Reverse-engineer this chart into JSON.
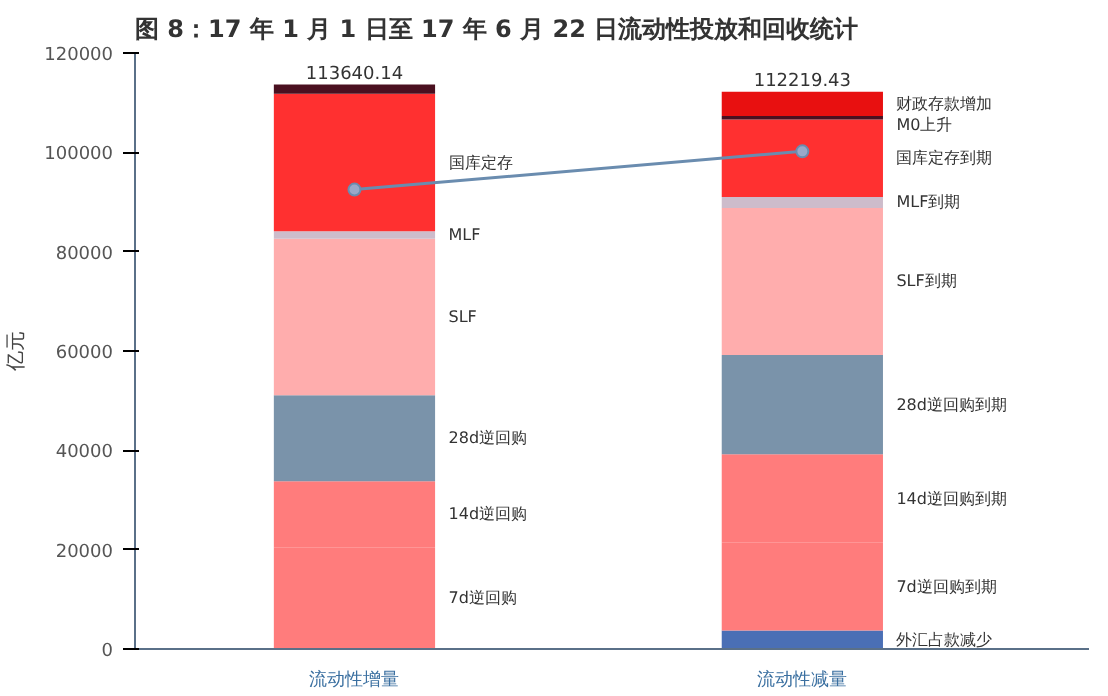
{
  "chart_data": {
    "type": "bar",
    "stacked": true,
    "title": "图 8：17 年 1 月 1 日至 17 年 6 月 22 日流动性投放和回收统计",
    "ylabel": "亿元",
    "categories": [
      "流动性增量",
      "流动性减量"
    ],
    "series": [
      {
        "name": "外汇占款减少",
        "color": "#4a6fb5",
        "values": [
          null,
          3700
        ]
      },
      {
        "name": "7d逆回购",
        "color": "#ff7c7c",
        "values": [
          20400,
          null
        ]
      },
      {
        "name": "7d逆回购到期",
        "color": "#ff7c7c",
        "values": [
          null,
          17700
        ]
      },
      {
        "name": "14d逆回购",
        "color": "#ff7c7c",
        "values": [
          13400,
          null
        ]
      },
      {
        "name": "14d逆回购到期",
        "color": "#ff7c7c",
        "values": [
          null,
          17800
        ]
      },
      {
        "name": "28d逆回购",
        "color": "#7a93aa",
        "values": [
          17300,
          null
        ]
      },
      {
        "name": "28d逆回购到期",
        "color": "#7a93aa",
        "values": [
          null,
          20000
        ]
      },
      {
        "name": "SLF",
        "color": "#ffadad",
        "values": [
          31500,
          null
        ]
      },
      {
        "name": "SLF到期",
        "color": "#ffadad",
        "values": [
          null,
          29600
        ]
      },
      {
        "name": "MLF",
        "color": "#cdbccb",
        "values": [
          1500,
          null
        ]
      },
      {
        "name": "MLF到期",
        "color": "#cdbccb",
        "values": [
          null,
          2200
        ]
      },
      {
        "name": "国库定存",
        "color": "#ff3030",
        "values": [
          27700,
          null
        ]
      },
      {
        "name": "国库定存到期",
        "color": "#ff3030",
        "values": [
          null,
          15600
        ]
      },
      {
        "color": "#4a1020",
        "values": [
          1840.14,
          null
        ]
      },
      {
        "name": "M0上升",
        "color": "#4a1020",
        "values": [
          null,
          700
        ]
      },
      {
        "name": "财政存款增加",
        "color": "#e81010",
        "values": [
          null,
          4919.43
        ]
      },
      {
        "type": "line",
        "color": "#6a8caf",
        "marker": "circle",
        "values": [
          92500,
          100200
        ]
      }
    ],
    "totals": [
      "113640.14",
      "112219.43"
    ],
    "ylim": [
      0,
      120000
    ],
    "yticks": [
      0,
      20000,
      40000,
      60000,
      80000,
      100000,
      120000
    ],
    "grid": false
  }
}
